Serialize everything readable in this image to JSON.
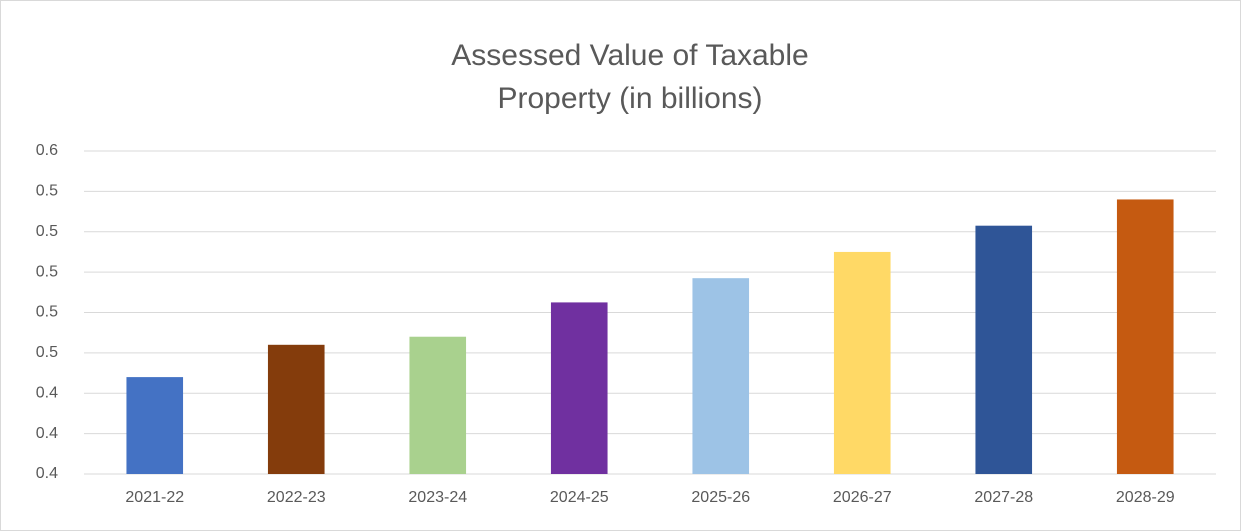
{
  "chart_data": {
    "type": "bar",
    "title": [
      "Assessed Value of Taxable",
      "Property (in billions)"
    ],
    "categories": [
      "2021-22",
      "2022-23",
      "2023-24",
      "2024-25",
      "2025-26",
      "2026-27",
      "2027-28",
      "2028-29"
    ],
    "values": [
      0.458,
      0.474,
      0.478,
      0.495,
      0.507,
      0.52,
      0.533,
      0.546
    ],
    "colors": [
      "#4472c4",
      "#843c0c",
      "#a9d18e",
      "#7030a0",
      "#9dc3e6",
      "#ffd966",
      "#2f5597",
      "#c55a11"
    ],
    "ylim": [
      0.41,
      0.57
    ],
    "yticks": [
      {
        "value": 0.41,
        "label": "0.4"
      },
      {
        "value": 0.43,
        "label": "0.4"
      },
      {
        "value": 0.45,
        "label": "0.4"
      },
      {
        "value": 0.47,
        "label": "0.5"
      },
      {
        "value": 0.49,
        "label": "0.5"
      },
      {
        "value": 0.51,
        "label": "0.5"
      },
      {
        "value": 0.53,
        "label": "0.5"
      },
      {
        "value": 0.55,
        "label": "0.5"
      },
      {
        "value": 0.57,
        "label": "0.6"
      }
    ],
    "grid": true
  }
}
